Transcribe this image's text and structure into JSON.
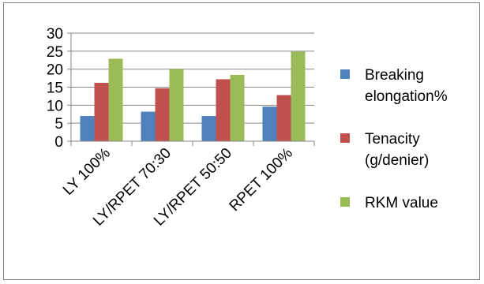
{
  "chart_data": {
    "type": "bar",
    "categories": [
      "LY 100%",
      "LY/RPET 70:30",
      "LY/RPET 50:50",
      "RPET 100%"
    ],
    "series": [
      {
        "name": "Breaking elongation%",
        "legend_lines": [
          "Breaking",
          "elongation%"
        ],
        "color": "#4f81bd",
        "values": [
          7.0,
          8.2,
          7.0,
          9.6
        ]
      },
      {
        "name": "Tenacity (g/denier)",
        "legend_lines": [
          "Tenacity",
          "(g/denier)"
        ],
        "color": "#c0504d",
        "values": [
          16.2,
          14.7,
          17.2,
          12.8
        ]
      },
      {
        "name": "RKM value",
        "legend_lines": [
          "RKM value"
        ],
        "color": "#9bbb59",
        "values": [
          22.9,
          20.0,
          18.4,
          24.9
        ]
      }
    ],
    "title": "",
    "xlabel": "",
    "ylabel": "",
    "ylim": [
      0,
      30
    ],
    "yticks": [
      0,
      5,
      10,
      15,
      20,
      25,
      30
    ],
    "grid": "horizontal",
    "legend_position": "right",
    "axis_color": "#868686",
    "grid_color": "#868686"
  }
}
